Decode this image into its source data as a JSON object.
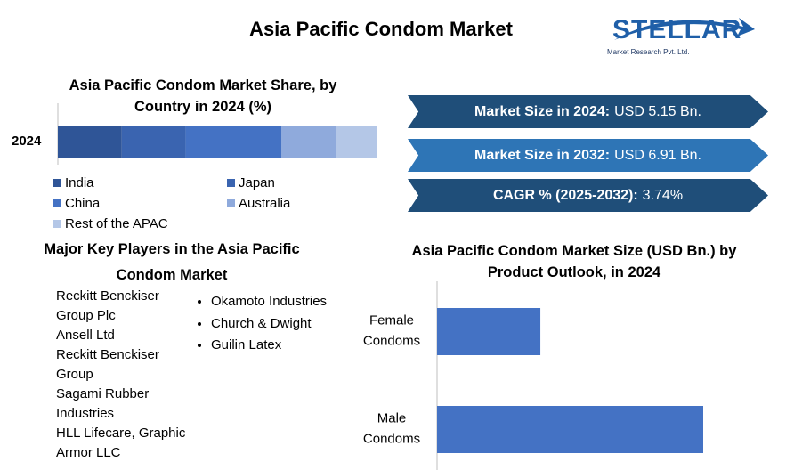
{
  "title": "Asia Pacific Condom Market",
  "logo": {
    "name": "STELLAR",
    "tagline": "Market Research Pvt. Ltd."
  },
  "chart_data": [
    {
      "type": "stacked_bar",
      "title": "Asia Pacific Condom Market Share, by Country in 2024 (%)",
      "categories": [
        "2024"
      ],
      "series": [
        {
          "name": "India",
          "color": "#2f5597",
          "values": [
            20
          ]
        },
        {
          "name": "Japan",
          "color": "#3a64b0",
          "values": [
            20
          ]
        },
        {
          "name": "China",
          "color": "#4472c4",
          "values": [
            30
          ]
        },
        {
          "name": "Australia",
          "color": "#8faadc",
          "values": [
            17
          ]
        },
        {
          "name": "Rest of the APAC",
          "color": "#b4c7e7",
          "values": [
            13
          ]
        }
      ]
    },
    {
      "type": "hbar",
      "title": "Asia Pacific Condom Market Size (USD Bn.) by Product Outlook, in 2024",
      "categories": [
        "Female Condoms",
        "Male Condoms"
      ],
      "values": [
        1.44,
        3.71
      ],
      "color": "#4472c4"
    }
  ],
  "stats": [
    {
      "label": "Market Size in 2024:",
      "value": "USD 5.15 Bn."
    },
    {
      "label": "Market Size in 2032:",
      "value": "USD 6.91 Bn."
    },
    {
      "label": "CAGR % (2025-2032):",
      "value": "3.74%"
    }
  ],
  "key_players": {
    "title": "Major Key Players in the Asia Pacific Condom Market",
    "column1": [
      "Reckitt Benckiser Group Plc",
      "Ansell Ltd",
      "Reckitt Benckiser Group",
      "Sagami Rubber Industries",
      "HLL Lifecare, Graphic Armor LLC"
    ],
    "column2": [
      "Okamoto Industries",
      "Church & Dwight",
      "Guilin Latex"
    ]
  }
}
